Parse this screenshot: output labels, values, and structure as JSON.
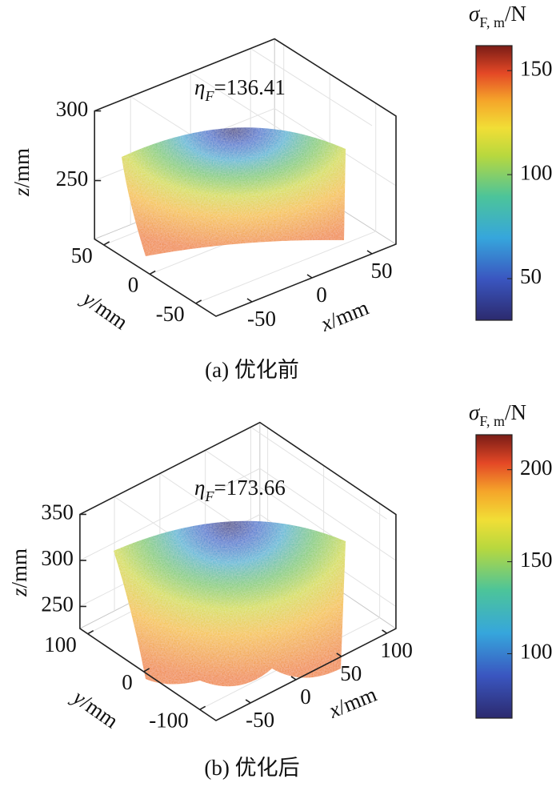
{
  "chart_data": [
    {
      "type": "scatter3d",
      "annotation": {
        "symbol": "η",
        "subscript": "F",
        "text": "=136.41"
      },
      "xlabel": {
        "var": "x",
        "unit": "/mm"
      },
      "ylabel": {
        "var": "y",
        "unit": "/mm"
      },
      "zlabel": {
        "var": "z",
        "unit": "/mm"
      },
      "xlim": [
        -80,
        70
      ],
      "xticks": [
        -50,
        0,
        50
      ],
      "ylim": [
        -72,
        60
      ],
      "yticks": [
        -50,
        0,
        50
      ],
      "zlim": [
        208,
        300
      ],
      "zticks": [
        250,
        300
      ],
      "colorbar": {
        "label": {
          "symbol": "σ",
          "subscript": "F, m",
          "unit": "/N"
        },
        "clim": [
          30,
          162
        ],
        "ticks": [
          50,
          100,
          150
        ]
      },
      "caption": "(a)  优化前"
    },
    {
      "type": "scatter3d",
      "annotation": {
        "symbol": "η",
        "subscript": "F",
        "text": "=173.66"
      },
      "xlabel": {
        "var": "x",
        "unit": "/mm"
      },
      "ylabel": {
        "var": "y",
        "unit": "/mm"
      },
      "zlabel": {
        "var": "z",
        "unit": "/mm"
      },
      "xlim": [
        -88,
        110
      ],
      "xticks": [
        -50,
        0,
        50,
        100
      ],
      "ylim": [
        -129,
        114
      ],
      "yticks": [
        -100,
        0,
        100
      ],
      "zlim": [
        226,
        350
      ],
      "zticks": [
        250,
        300,
        350
      ],
      "colorbar": {
        "label": {
          "symbol": "σ",
          "subscript": "F, m",
          "unit": "/N"
        },
        "clim": [
          65,
          219
        ],
        "ticks": [
          100,
          150,
          200
        ]
      },
      "caption": "(b)  优化后"
    }
  ]
}
